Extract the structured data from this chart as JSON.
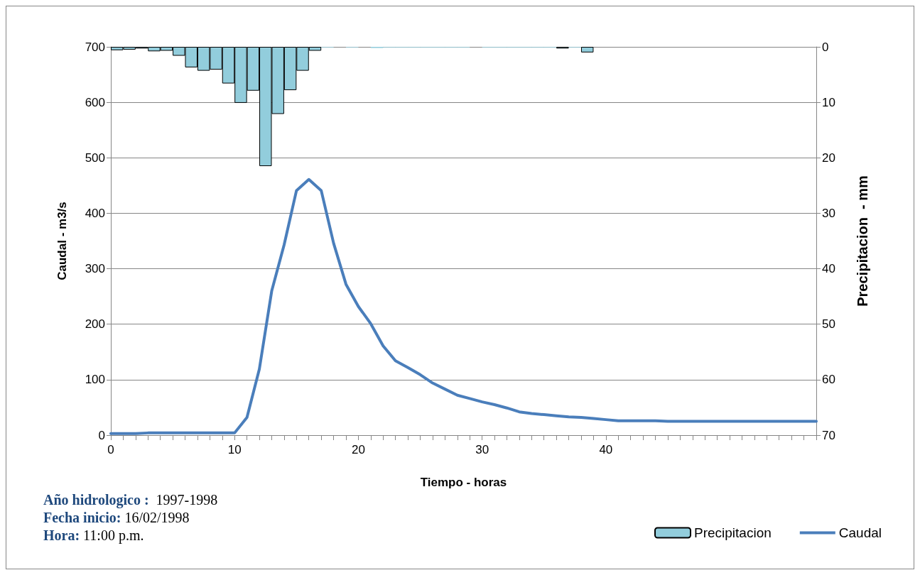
{
  "chart_data": {
    "type": "line",
    "xlabel": "Tiempo - horas",
    "ylabel": "Caudal - m3/s",
    "y2label": "Precipitacion  - mm",
    "xlim": [
      0,
      57
    ],
    "xticks": [
      0,
      {
        "value": 1,
        "label": null
      },
      {
        "value": 2,
        "label": null
      },
      {
        "value": 3,
        "label": null
      },
      {
        "value": 4,
        "label": null
      },
      {
        "value": 5,
        "label": null
      },
      {
        "value": 6,
        "label": null
      },
      {
        "value": 7,
        "label": null
      },
      {
        "value": 8,
        "label": null
      },
      {
        "value": 9,
        "label": null
      },
      10,
      {
        "value": 11,
        "label": null
      },
      {
        "value": 12,
        "label": null
      },
      {
        "value": 13,
        "label": null
      },
      {
        "value": 14,
        "label": null
      },
      {
        "value": 15,
        "label": null
      },
      {
        "value": 16,
        "label": null
      },
      {
        "value": 17,
        "label": null
      },
      {
        "value": 18,
        "label": null
      },
      {
        "value": 19,
        "label": null
      },
      20,
      {
        "value": 21,
        "label": null
      },
      {
        "value": 22,
        "label": null
      },
      {
        "value": 23,
        "label": null
      },
      {
        "value": 24,
        "label": null
      },
      {
        "value": 25,
        "label": null
      },
      {
        "value": 26,
        "label": null
      },
      {
        "value": 27,
        "label": null
      },
      {
        "value": 28,
        "label": null
      },
      {
        "value": 29,
        "label": null
      },
      30,
      {
        "value": 31,
        "label": null
      },
      {
        "value": 32,
        "label": null
      },
      {
        "value": 33,
        "label": null
      },
      {
        "value": 34,
        "label": null
      },
      {
        "value": 35,
        "label": null
      },
      {
        "value": 36,
        "label": null
      },
      {
        "value": 37,
        "label": null
      },
      {
        "value": 38,
        "label": null
      },
      {
        "value": 39,
        "label": null
      },
      40,
      {
        "value": 41,
        "label": null
      },
      {
        "value": 42,
        "label": null
      },
      {
        "value": 43,
        "label": null
      },
      {
        "value": 44,
        "label": null
      },
      {
        "value": 45,
        "label": null
      },
      {
        "value": 46,
        "label": null
      },
      {
        "value": 47,
        "label": null
      },
      {
        "value": 48,
        "label": null
      },
      {
        "value": 49,
        "label": null
      },
      {
        "value": 50,
        "label": null
      },
      {
        "value": 51,
        "label": null
      },
      {
        "value": 52,
        "label": null
      },
      {
        "value": 53,
        "label": null
      },
      {
        "value": 54,
        "label": null
      },
      {
        "value": 55,
        "label": null
      },
      {
        "value": 56,
        "label": null
      },
      {
        "value": 57,
        "label": null
      }
    ],
    "ylim": [
      0,
      700
    ],
    "yticks": [
      0,
      100,
      200,
      300,
      400,
      500,
      600,
      700
    ],
    "y2lim": [
      70,
      0
    ],
    "y2ticks": [
      0,
      10,
      20,
      30,
      40,
      50,
      60,
      70
    ],
    "grid": "y",
    "legend": "bottom right",
    "marker": "none",
    "line_style": "solid",
    "series": [
      {
        "name": "Precipitacion",
        "type": "bar",
        "axis": "y2",
        "color": "#92cddc",
        "x": [
          0.5,
          1.5,
          2.5,
          3.5,
          4.5,
          5.5,
          6.5,
          7.5,
          8.5,
          9.5,
          10.5,
          11.5,
          12.5,
          13.5,
          14.5,
          15.5,
          16.5,
          17.5,
          18.5,
          19.5,
          20.5,
          21.5,
          22.5,
          23.5,
          24.5,
          25.5,
          26.5,
          27.5,
          28.5,
          29.5,
          30.5,
          31.5,
          32.5,
          33.5,
          34.5,
          35.5,
          36.5,
          37.5,
          38.5
        ],
        "values": [
          0.6,
          0.5,
          0.3,
          0.8,
          0.7,
          1.6,
          3.7,
          4.3,
          4.1,
          6.6,
          10.1,
          7.9,
          21.5,
          12.1,
          7.8,
          4.3,
          0.7,
          0.1,
          0,
          0.1,
          0,
          0.2,
          0.1,
          0.1,
          0.1,
          0.1,
          0.1,
          0.1,
          0.1,
          0,
          0.1,
          0.1,
          0.1,
          0.1,
          0.1,
          0.1,
          0.3,
          0.1,
          1.0
        ]
      },
      {
        "name": "Caudal",
        "color": "#4a7ebb",
        "x": [
          0,
          1,
          2,
          3,
          4,
          5,
          6,
          7,
          8,
          9,
          10,
          11,
          12,
          13,
          14,
          15,
          16,
          17,
          18,
          19,
          20,
          21,
          22,
          23,
          24,
          25,
          26,
          27,
          28,
          29,
          30,
          31,
          32,
          33,
          34,
          35,
          36,
          37,
          38,
          39,
          40,
          41,
          42,
          43,
          44,
          45,
          46,
          47,
          48,
          49,
          50,
          51,
          52,
          53,
          54,
          55,
          56,
          57
        ],
        "values": [
          3,
          3,
          3,
          4,
          4,
          4,
          4,
          4,
          4,
          4,
          4,
          32,
          119,
          260,
          343,
          441,
          461,
          441,
          346,
          272,
          232,
          201,
          161,
          134,
          122,
          109,
          94,
          83,
          72,
          66,
          60,
          55,
          49,
          42,
          39,
          37,
          35,
          33,
          32,
          30,
          28,
          26,
          26,
          26,
          26,
          25,
          25,
          25,
          25,
          25,
          25,
          25,
          25,
          25,
          25,
          25,
          25,
          25
        ]
      }
    ],
    "annotations": [
      "Año hidrologico :  1997-1998",
      "Fecha inicio: 16/02/1998",
      "Hora: 11:00 p.m."
    ]
  }
}
